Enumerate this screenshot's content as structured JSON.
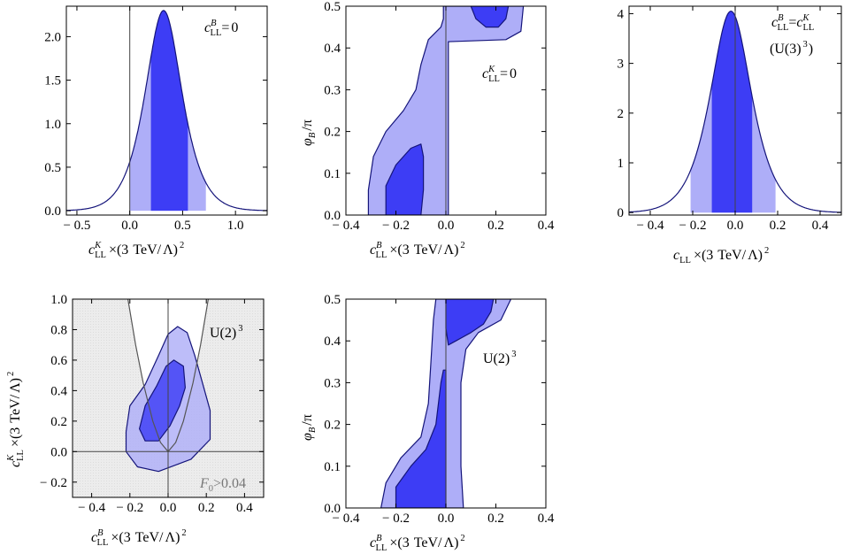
{
  "colors": {
    "dark": "#3d3df5",
    "light": "#aeaef8",
    "stroke": "#14147a",
    "excluded": "#ebebeb"
  },
  "labels": {
    "xl_c": "c",
    "xl_LL": "LL",
    "xl_B": "B",
    "xl_K": "K",
    "xl_times": "×(3",
    "xl_tev": "TeV/",
    "xl_lambda": "Λ)",
    "xl_sq": "2",
    "phi": "φ",
    "phi_B": "B",
    "phi_pi": "/π",
    "u2": "U(2)",
    "u3": "(U(3)",
    "cube": "3",
    "eq": "=",
    "zero": "0",
    "close": ")",
    "f0_F": "F",
    "f0_0": "0",
    "f0_rest": ">0.04"
  },
  "chart_data": [
    {
      "id": "panel_1",
      "type": "area",
      "title": "c_LL^B = 0",
      "xlabel": "c_LL^K × (3 TeV/Λ)^2",
      "ylabel": "",
      "xlim": [
        -0.6,
        1.3
      ],
      "ylim": [
        -0.05,
        2.35
      ],
      "xticks": [
        "-0.5",
        "0.0",
        "0.5",
        "1.0"
      ],
      "yticks": [
        "0.0",
        "0.5",
        "1.0",
        "1.5",
        "2.0"
      ],
      "peak_x": 0.32,
      "peak_y": 2.3,
      "interval_68": [
        0.2,
        0.55
      ],
      "interval_95": [
        0.0,
        0.72
      ],
      "markers": [
        {
          "x": 0.0,
          "orientation": "vertical"
        }
      ]
    },
    {
      "id": "panel_2",
      "type": "contour",
      "title": "",
      "annotation": "c_LL^K = 0",
      "xlabel": "c_LL^B × (3 TeV/Λ)^2",
      "ylabel": "φ_B/π",
      "xlim": [
        -0.4,
        0.4
      ],
      "ylim": [
        0.0,
        0.5
      ],
      "xticks": [
        "-0.4",
        "-0.2",
        "0.0",
        "0.2",
        "0.4"
      ],
      "yticks": [
        "0.0",
        "0.1",
        "0.2",
        "0.3",
        "0.4",
        "0.5"
      ],
      "regions": [
        {
          "level": "95%",
          "points": [
            [
              -0.31,
              0.0
            ],
            [
              -0.31,
              0.06
            ],
            [
              -0.29,
              0.14
            ],
            [
              -0.24,
              0.2
            ],
            [
              -0.17,
              0.25
            ],
            [
              -0.12,
              0.3
            ],
            [
              -0.1,
              0.36
            ],
            [
              -0.07,
              0.42
            ],
            [
              -0.02,
              0.45
            ],
            [
              -0.01,
              0.47
            ],
            [
              -0.01,
              0.5
            ],
            [
              0.31,
              0.5
            ],
            [
              0.3,
              0.44
            ],
            [
              0.24,
              0.42
            ],
            [
              0.01,
              0.415
            ],
            [
              0.01,
              0.0
            ]
          ]
        },
        {
          "level": "68%",
          "points": [
            [
              -0.24,
              0.0
            ],
            [
              -0.24,
              0.07
            ],
            [
              -0.2,
              0.12
            ],
            [
              -0.14,
              0.16
            ],
            [
              -0.1,
              0.17
            ],
            [
              -0.09,
              0.14
            ],
            [
              -0.09,
              0.06
            ],
            [
              -0.1,
              0.0
            ]
          ]
        },
        {
          "level": "68%",
          "points": [
            [
              0.1,
              0.5
            ],
            [
              0.12,
              0.47
            ],
            [
              0.16,
              0.45
            ],
            [
              0.21,
              0.45
            ],
            [
              0.24,
              0.47
            ],
            [
              0.25,
              0.5
            ]
          ]
        }
      ],
      "markers": [
        {
          "x": 0.0,
          "orientation": "vertical"
        }
      ]
    },
    {
      "id": "panel_3",
      "type": "area",
      "title": "c_LL^B = c_LL^K (U(3)^3)",
      "xlabel": "c_LL × (3 TeV/Λ)^2",
      "ylabel": "",
      "xlim": [
        -0.5,
        0.5
      ],
      "ylim": [
        -0.05,
        4.15
      ],
      "xticks": [
        "-0.4",
        "-0.2",
        "0.0",
        "0.2",
        "0.4"
      ],
      "yticks": [
        "0",
        "1",
        "2",
        "3",
        "4"
      ],
      "peak_x": -0.02,
      "peak_y": 4.05,
      "interval_68": [
        -0.11,
        0.08
      ],
      "interval_95": [
        -0.21,
        0.19
      ],
      "markers": [
        {
          "x": 0.0,
          "orientation": "vertical"
        }
      ]
    },
    {
      "id": "panel_4",
      "type": "contour",
      "title": "",
      "annotation": "U(2)^3",
      "shaded_annotation": "F_0 > 0.04",
      "xlabel": "c_LL^B × (3 TeV/Λ)^2",
      "ylabel": "c_LL^K × (3 TeV/Λ)^2",
      "xlim": [
        -0.5,
        0.5
      ],
      "ylim": [
        -0.3,
        1.0
      ],
      "xticks": [
        "-0.4",
        "-0.2",
        "0.0",
        "0.2",
        "0.4"
      ],
      "yticks": [
        "-0.2",
        "0.0",
        "0.2",
        "0.4",
        "0.6",
        "0.8",
        "1.0"
      ],
      "regions": [
        {
          "level": "95%",
          "points": [
            [
              -0.22,
              0.13
            ],
            [
              -0.2,
              0.3
            ],
            [
              -0.12,
              0.44
            ],
            [
              -0.05,
              0.63
            ],
            [
              0.0,
              0.77
            ],
            [
              0.05,
              0.82
            ],
            [
              0.1,
              0.78
            ],
            [
              0.14,
              0.63
            ],
            [
              0.18,
              0.45
            ],
            [
              0.22,
              0.27
            ],
            [
              0.22,
              0.08
            ],
            [
              0.12,
              -0.05
            ],
            [
              -0.05,
              -0.13
            ],
            [
              -0.16,
              -0.1
            ],
            [
              -0.22,
              0.0
            ]
          ]
        },
        {
          "level": "68%",
          "points": [
            [
              -0.15,
              0.15
            ],
            [
              -0.12,
              0.3
            ],
            [
              -0.06,
              0.43
            ],
            [
              -0.01,
              0.56
            ],
            [
              0.03,
              0.6
            ],
            [
              0.08,
              0.56
            ],
            [
              0.09,
              0.42
            ],
            [
              0.06,
              0.3
            ],
            [
              0.01,
              0.17
            ],
            [
              -0.05,
              0.07
            ],
            [
              -0.12,
              0.07
            ]
          ]
        }
      ],
      "boundary_curve": [
        [
          -0.21,
          1.0
        ],
        [
          -0.17,
          0.7
        ],
        [
          -0.13,
          0.45
        ],
        [
          -0.08,
          0.2
        ],
        [
          -0.04,
          0.06
        ],
        [
          0.0,
          0.0
        ],
        [
          0.04,
          0.06
        ],
        [
          0.08,
          0.2
        ],
        [
          0.13,
          0.45
        ],
        [
          0.17,
          0.7
        ],
        [
          0.21,
          1.0
        ]
      ],
      "markers": [
        {
          "x": 0.0,
          "orientation": "vertical"
        },
        {
          "y": 0.0,
          "orientation": "horizontal"
        }
      ]
    },
    {
      "id": "panel_5",
      "type": "contour",
      "title": "",
      "annotation": "U(2)^3",
      "xlabel": "c_LL^B × (3 TeV/Λ)^2",
      "ylabel": "φ_B/π",
      "xlim": [
        -0.4,
        0.4
      ],
      "ylim": [
        0.0,
        0.5
      ],
      "xticks": [
        "-0.4",
        "-0.2",
        "0.0",
        "0.2",
        "0.4"
      ],
      "yticks": [
        "0.0",
        "0.1",
        "0.2",
        "0.3",
        "0.4",
        "0.5"
      ],
      "regions": [
        {
          "level": "95%",
          "points": [
            [
              -0.26,
              0.0
            ],
            [
              -0.24,
              0.06
            ],
            [
              -0.18,
              0.12
            ],
            [
              -0.1,
              0.17
            ],
            [
              -0.07,
              0.25
            ],
            [
              -0.06,
              0.35
            ],
            [
              -0.05,
              0.45
            ],
            [
              -0.04,
              0.5
            ],
            [
              0.26,
              0.5
            ],
            [
              0.22,
              0.45
            ],
            [
              0.13,
              0.42
            ],
            [
              0.08,
              0.38
            ],
            [
              0.06,
              0.3
            ],
            [
              0.06,
              0.2
            ],
            [
              0.06,
              0.1
            ],
            [
              0.07,
              0.0
            ]
          ]
        },
        {
          "level": "68%",
          "points": [
            [
              -0.2,
              0.0
            ],
            [
              -0.2,
              0.05
            ],
            [
              -0.14,
              0.1
            ],
            [
              -0.08,
              0.14
            ],
            [
              -0.04,
              0.2
            ],
            [
              -0.02,
              0.3
            ],
            [
              -0.01,
              0.33
            ],
            [
              0.0,
              0.33
            ],
            [
              0.0,
              0.0
            ]
          ]
        },
        {
          "level": "68%",
          "points": [
            [
              0.0,
              0.5
            ],
            [
              0.0,
              0.43
            ],
            [
              0.01,
              0.39
            ],
            [
              0.04,
              0.4
            ],
            [
              0.1,
              0.42
            ],
            [
              0.15,
              0.44
            ],
            [
              0.18,
              0.47
            ],
            [
              0.19,
              0.5
            ]
          ]
        }
      ],
      "markers": [
        {
          "x": 0.0,
          "orientation": "vertical"
        }
      ]
    }
  ]
}
